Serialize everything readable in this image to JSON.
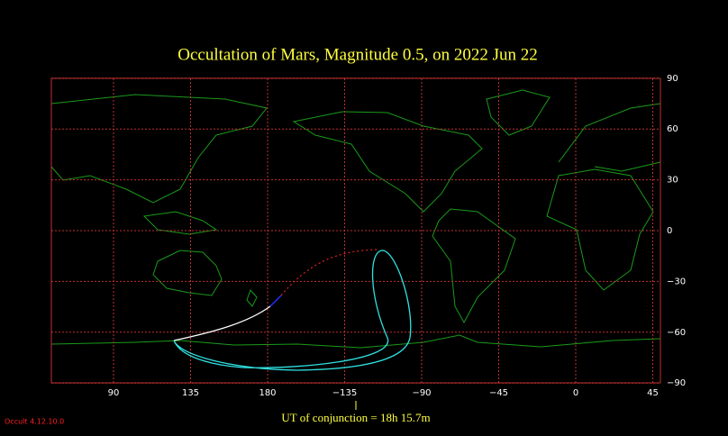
{
  "title": "Occultation  of  Mars,      Magnitude 0.5,   on  2022 Jun 22",
  "lon_ticks": [
    {
      "value": 90,
      "label": "90"
    },
    {
      "value": 135,
      "label": "135"
    },
    {
      "value": 180,
      "label": "180"
    },
    {
      "value": -135,
      "label": "−135"
    },
    {
      "value": -90,
      "label": "−90"
    },
    {
      "value": -45,
      "label": "−45"
    },
    {
      "value": 0,
      "label": "0"
    },
    {
      "value": 45,
      "label": "45"
    }
  ],
  "lat_ticks": [
    {
      "value": 90,
      "label": "90"
    },
    {
      "value": 60,
      "label": "60"
    },
    {
      "value": 30,
      "label": "30"
    },
    {
      "value": 0,
      "label": "0"
    },
    {
      "value": -30,
      "label": "−30"
    },
    {
      "value": -60,
      "label": "−60"
    },
    {
      "value": -90,
      "label": "−90"
    }
  ],
  "conjunction": "UT of conjunction = 18h 15.7m",
  "version": "Occult 4.12.10.0"
}
